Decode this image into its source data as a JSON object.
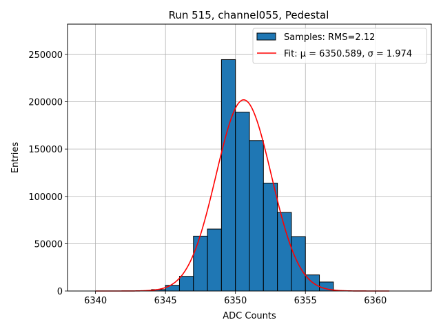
{
  "chart_data": {
    "type": "bar",
    "title": "Run 515, channel055, Pedestal",
    "xlabel": "ADC Counts",
    "ylabel": "Entries",
    "xlim": [
      6338,
      6364
    ],
    "ylim": [
      0,
      282000
    ],
    "xticks": [
      6340,
      6345,
      6350,
      6355,
      6360
    ],
    "yticks": [
      0,
      50000,
      100000,
      150000,
      200000,
      250000
    ],
    "grid": true,
    "legend_position": "top-right",
    "histogram": {
      "name": "Samples: RMS=2.12",
      "color": "#1f77b4",
      "bin_edges": [
        6344,
        6345,
        6346,
        6347,
        6348,
        6349,
        6350,
        6351,
        6352,
        6353,
        6354,
        6355,
        6356,
        6357
      ],
      "counts": [
        1500,
        6000,
        15500,
        58000,
        65500,
        244500,
        189000,
        159000,
        114000,
        83000,
        57500,
        17000,
        9500
      ]
    },
    "fit": {
      "name": "Fit: μ = 6350.589, σ = 1.974",
      "color": "#ff0000",
      "mu": 6350.589,
      "sigma": 1.974,
      "amplitude": 202000,
      "x_range": [
        6340,
        6361
      ]
    }
  }
}
